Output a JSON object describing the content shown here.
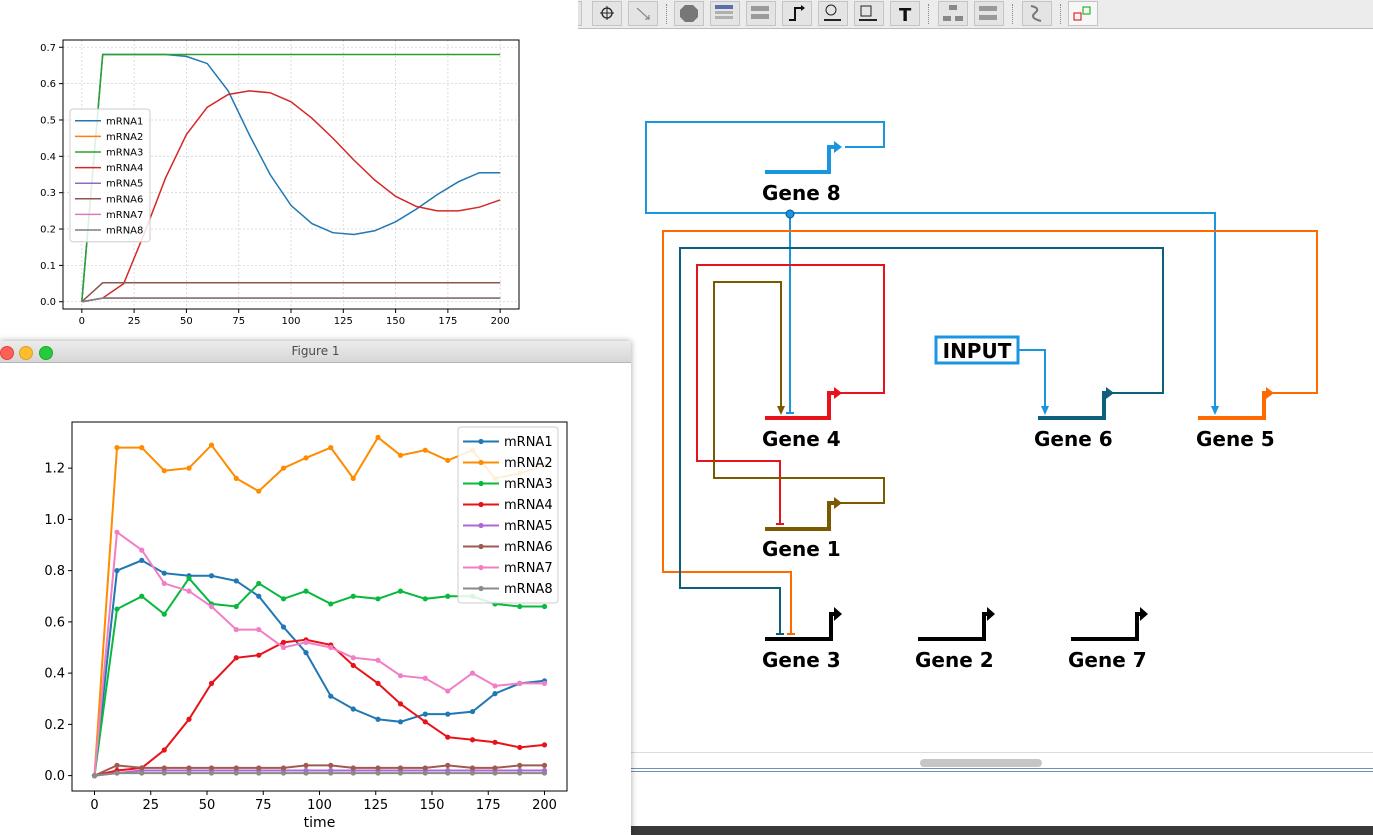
{
  "figure_window": {
    "title": "Figure 1"
  },
  "network": {
    "genes": [
      {
        "label": "Gene 8",
        "color": "#1a96e0"
      },
      {
        "label": "Gene 4",
        "color": "#e8121b"
      },
      {
        "label": "Gene 6",
        "color": "#0d5f7b"
      },
      {
        "label": "Gene 5",
        "color": "#ff6a00"
      },
      {
        "label": "Gene 1",
        "color": "#7a5a00"
      },
      {
        "label": "Gene 3",
        "color": "#000000"
      },
      {
        "label": "Gene 2",
        "color": "#000000"
      },
      {
        "label": "Gene 7",
        "color": "#000000"
      }
    ],
    "input_label": "INPUT"
  },
  "chart_data": [
    {
      "type": "line",
      "title": "",
      "xlabel": "",
      "ylabel": "",
      "xlim": [
        -9,
        209
      ],
      "ylim": [
        -0.02,
        0.72
      ],
      "xticks": [
        "0",
        "25",
        "50",
        "75",
        "100",
        "125",
        "150",
        "175",
        "200"
      ],
      "yticks": [
        "0.0",
        "0.1",
        "0.2",
        "0.3",
        "0.4",
        "0.5",
        "0.6",
        "0.7"
      ],
      "grid": true,
      "legend_position": "center-left",
      "series": [
        {
          "name": "mRNA1",
          "color": "#1f77b4",
          "x": [
            0,
            10,
            20,
            30,
            40,
            50,
            60,
            70,
            80,
            90,
            100,
            110,
            120,
            130,
            140,
            150,
            160,
            170,
            180,
            190,
            200
          ],
          "y": [
            0,
            0.68,
            0.68,
            0.68,
            0.68,
            0.675,
            0.655,
            0.58,
            0.46,
            0.35,
            0.265,
            0.215,
            0.19,
            0.185,
            0.195,
            0.22,
            0.255,
            0.295,
            0.33,
            0.355,
            0.355
          ]
        },
        {
          "name": "mRNA2",
          "color": "#ff7f0e",
          "x": [
            0,
            10,
            200
          ],
          "y": [
            0,
            0.01,
            0.01
          ]
        },
        {
          "name": "mRNA3",
          "color": "#2ca02c",
          "x": [
            0,
            10,
            20,
            30,
            40,
            50,
            60,
            70,
            80,
            90,
            100,
            110,
            120,
            130,
            140,
            150,
            160,
            170,
            180,
            190,
            200
          ],
          "y": [
            0,
            0.68,
            0.68,
            0.68,
            0.68,
            0.68,
            0.68,
            0.68,
            0.68,
            0.68,
            0.68,
            0.68,
            0.68,
            0.68,
            0.68,
            0.68,
            0.68,
            0.68,
            0.68,
            0.68,
            0.68
          ]
        },
        {
          "name": "mRNA4",
          "color": "#d62728",
          "x": [
            0,
            10,
            20,
            30,
            40,
            50,
            60,
            70,
            80,
            90,
            100,
            110,
            120,
            130,
            140,
            150,
            160,
            170,
            180,
            190,
            200
          ],
          "y": [
            0,
            0.01,
            0.05,
            0.19,
            0.34,
            0.46,
            0.535,
            0.57,
            0.58,
            0.575,
            0.55,
            0.505,
            0.45,
            0.39,
            0.335,
            0.29,
            0.262,
            0.25,
            0.25,
            0.26,
            0.28
          ]
        },
        {
          "name": "mRNA5",
          "color": "#9467bd",
          "x": [
            0,
            10,
            200
          ],
          "y": [
            0,
            0.01,
            0.01
          ]
        },
        {
          "name": "mRNA6",
          "color": "#8c564b",
          "x": [
            0,
            10,
            200
          ],
          "y": [
            0,
            0.052,
            0.052
          ]
        },
        {
          "name": "mRNA7",
          "color": "#e377c2",
          "x": [
            0,
            10,
            200
          ],
          "y": [
            0,
            0.01,
            0.01
          ]
        },
        {
          "name": "mRNA8",
          "color": "#7f7f7f",
          "x": [
            0,
            10,
            200
          ],
          "y": [
            0,
            0.01,
            0.01
          ]
        }
      ]
    },
    {
      "type": "line",
      "title": "",
      "xlabel": "time",
      "ylabel": "",
      "xlim": [
        -10,
        210
      ],
      "ylim": [
        -0.06,
        1.38
      ],
      "xticks": [
        "0",
        "25",
        "50",
        "75",
        "100",
        "125",
        "150",
        "175",
        "200"
      ],
      "yticks": [
        "0.0",
        "0.2",
        "0.4",
        "0.6",
        "0.8",
        "1.0",
        "1.2"
      ],
      "grid": false,
      "legend_position": "top-right",
      "series": [
        {
          "name": "mRNA1",
          "color": "#1f77b4",
          "x": [
            0,
            10,
            21,
            31,
            42,
            52,
            63,
            73,
            84,
            94,
            105,
            115,
            126,
            136,
            147,
            157,
            168,
            178,
            189,
            200
          ],
          "y": [
            0,
            0.8,
            0.84,
            0.79,
            0.78,
            0.78,
            0.76,
            0.7,
            0.58,
            0.48,
            0.31,
            0.26,
            0.22,
            0.21,
            0.24,
            0.24,
            0.25,
            0.32,
            0.36,
            0.37
          ]
        },
        {
          "name": "mRNA2",
          "color": "#ff8c00",
          "x": [
            0,
            10,
            21,
            31,
            42,
            52,
            63,
            73,
            84,
            94,
            105,
            115,
            126,
            136,
            147,
            157,
            168,
            178,
            189,
            200
          ],
          "y": [
            0,
            1.28,
            1.28,
            1.19,
            1.2,
            1.29,
            1.16,
            1.11,
            1.2,
            1.24,
            1.28,
            1.16,
            1.32,
            1.25,
            1.27,
            1.23,
            1.27,
            1.16,
            1.18,
            1.21
          ]
        },
        {
          "name": "mRNA3",
          "color": "#09b83e",
          "x": [
            0,
            10,
            21,
            31,
            42,
            52,
            63,
            73,
            84,
            94,
            105,
            115,
            126,
            136,
            147,
            157,
            168,
            178,
            189,
            200
          ],
          "y": [
            0,
            0.65,
            0.7,
            0.63,
            0.77,
            0.67,
            0.66,
            0.75,
            0.69,
            0.72,
            0.67,
            0.7,
            0.69,
            0.72,
            0.69,
            0.7,
            0.7,
            0.67,
            0.66,
            0.66
          ]
        },
        {
          "name": "mRNA4",
          "color": "#e8121b",
          "x": [
            0,
            10,
            21,
            31,
            42,
            52,
            63,
            73,
            84,
            94,
            105,
            115,
            126,
            136,
            147,
            157,
            168,
            178,
            189,
            200
          ],
          "y": [
            0,
            0.02,
            0.03,
            0.1,
            0.22,
            0.36,
            0.46,
            0.47,
            0.52,
            0.53,
            0.51,
            0.43,
            0.36,
            0.28,
            0.21,
            0.15,
            0.14,
            0.13,
            0.11,
            0.12
          ]
        },
        {
          "name": "mRNA5",
          "color": "#b166d6",
          "x": [
            0,
            10,
            21,
            31,
            42,
            52,
            63,
            73,
            84,
            94,
            105,
            115,
            126,
            136,
            147,
            157,
            168,
            178,
            189,
            200
          ],
          "y": [
            0,
            0.01,
            0.02,
            0.02,
            0.02,
            0.02,
            0.02,
            0.02,
            0.02,
            0.02,
            0.02,
            0.02,
            0.02,
            0.02,
            0.02,
            0.02,
            0.02,
            0.02,
            0.02,
            0.02
          ]
        },
        {
          "name": "mRNA6",
          "color": "#a05a50",
          "x": [
            0,
            10,
            21,
            31,
            42,
            52,
            63,
            73,
            84,
            94,
            105,
            115,
            126,
            136,
            147,
            157,
            168,
            178,
            189,
            200
          ],
          "y": [
            0,
            0.04,
            0.03,
            0.03,
            0.03,
            0.03,
            0.03,
            0.03,
            0.03,
            0.04,
            0.04,
            0.03,
            0.03,
            0.03,
            0.03,
            0.04,
            0.03,
            0.03,
            0.04,
            0.04
          ]
        },
        {
          "name": "mRNA7",
          "color": "#f27ec6",
          "x": [
            0,
            10,
            21,
            31,
            42,
            52,
            63,
            73,
            84,
            94,
            105,
            115,
            126,
            136,
            147,
            157,
            168,
            178,
            189,
            200
          ],
          "y": [
            0,
            0.95,
            0.88,
            0.75,
            0.72,
            0.66,
            0.57,
            0.57,
            0.5,
            0.52,
            0.5,
            0.46,
            0.45,
            0.39,
            0.38,
            0.33,
            0.4,
            0.35,
            0.36,
            0.36
          ]
        },
        {
          "name": "mRNA8",
          "color": "#8a8a8a",
          "x": [
            0,
            10,
            21,
            31,
            42,
            52,
            63,
            73,
            84,
            94,
            105,
            115,
            126,
            136,
            147,
            157,
            168,
            178,
            189,
            200
          ],
          "y": [
            0,
            0.01,
            0.01,
            0.01,
            0.01,
            0.01,
            0.01,
            0.01,
            0.01,
            0.01,
            0.01,
            0.01,
            0.01,
            0.01,
            0.01,
            0.01,
            0.01,
            0.01,
            0.01,
            0.01
          ]
        }
      ]
    }
  ]
}
